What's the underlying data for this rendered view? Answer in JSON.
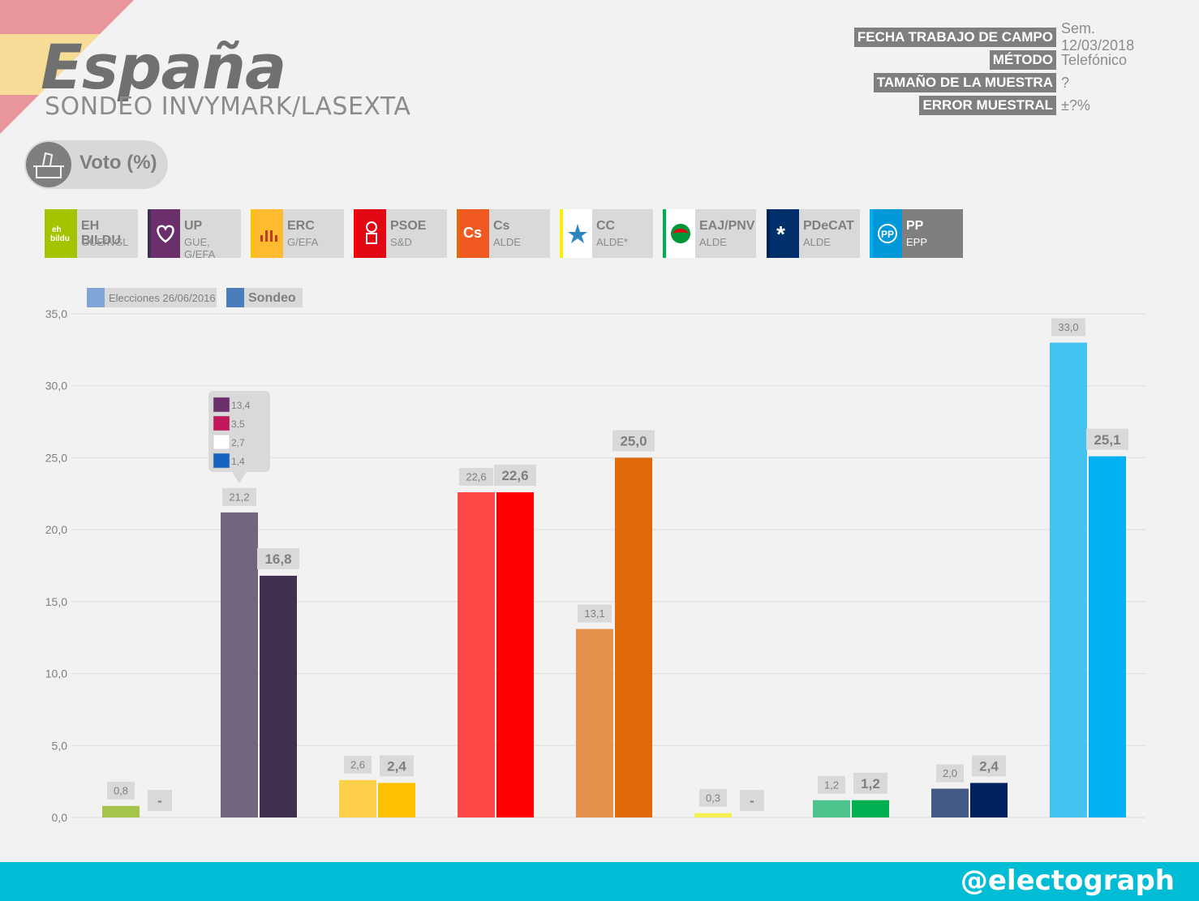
{
  "header": {
    "title": "España",
    "subtitle": "SONDEO INVYMARK/LASEXTA",
    "meta": [
      {
        "key": "FECHA TRABAJO DE CAMPO",
        "value": "Sem. 12/03/2018"
      },
      {
        "key": "MÉTODO",
        "value": "Telefónico"
      },
      {
        "key": "TAMAÑO DE LA MUESTRA",
        "value": "?"
      },
      {
        "key": "ERROR MUESTRAL",
        "value": "±?%"
      }
    ]
  },
  "metric": {
    "label": "Voto (%)",
    "icon": "ballot-box-icon"
  },
  "parties": [
    {
      "name": "EH BILDU",
      "group": "GUE/NGL",
      "color": "#a5c400",
      "logo_text": "eh bildu"
    },
    {
      "name": "UP",
      "group": "GUE, G/EFA",
      "color": "#6b2f6b",
      "logo_text": ""
    },
    {
      "name": "ERC",
      "group": "G/EFA",
      "color": "#ffbb2f",
      "logo_text": ""
    },
    {
      "name": "PSOE",
      "group": "S&D",
      "color": "#e30613",
      "logo_text": ""
    },
    {
      "name": "Cs",
      "group": "ALDE",
      "color": "#f05a22",
      "logo_text": "Cs"
    },
    {
      "name": "CC",
      "group": "ALDE*",
      "color": "#ffed00",
      "logo_text": ""
    },
    {
      "name": "EAJ/PNV",
      "group": "ALDE",
      "color": "#009639",
      "logo_text": ""
    },
    {
      "name": "PDeCAT",
      "group": "ALDE",
      "color": "#002f6c",
      "logo_text": ""
    },
    {
      "name": "PP",
      "group": "EPP",
      "color": "#0098d9",
      "logo_text": ""
    }
  ],
  "chart_data": {
    "type": "bar",
    "categories": [
      "EH BILDU",
      "UP",
      "ERC",
      "PSOE",
      "Cs",
      "CC",
      "EAJ/PNV",
      "PDeCAT",
      "PP"
    ],
    "series": [
      {
        "name": "Elecciones 26/06/2016",
        "values": [
          0.8,
          21.2,
          2.6,
          22.6,
          13.1,
          0.3,
          1.2,
          2.0,
          33.0
        ],
        "labels": [
          "0,8",
          "21,2",
          "2,6",
          "22,6",
          "13,1",
          "0,3",
          "1,2",
          "2,0",
          "33,0"
        ],
        "legend_color": "#7ea6d6",
        "colors": [
          "#a5c44a",
          "#72667f",
          "#fdd04a",
          "#ff4848",
          "#e3924b",
          "#f4f052",
          "#4cc38a",
          "#435a87",
          "#45c3f0"
        ]
      },
      {
        "name": "Sondeo",
        "values": [
          null,
          16.8,
          2.4,
          22.6,
          25.0,
          null,
          1.2,
          2.4,
          25.1
        ],
        "labels": [
          "-",
          "16,8",
          "2,4",
          "22,6",
          "25,0",
          "-",
          "1,2",
          "2,4",
          "25,1"
        ],
        "legend_color": "#4a7ebb",
        "colors": [
          "#a5c44a",
          "#41304f",
          "#ffc000",
          "#ff0000",
          "#e06909",
          "#f4f052",
          "#00b050",
          "#002060",
          "#00b0f0"
        ]
      }
    ],
    "ylim": [
      0,
      35
    ],
    "yticks": [
      "0,0",
      "5,0",
      "10,0",
      "15,0",
      "20,0",
      "25,0",
      "30,0",
      "35,0"
    ],
    "grid": true,
    "legend_position": "top-left",
    "annotation": {
      "category": "UP",
      "items": [
        {
          "label": "13,4",
          "logo": "podemos-logo-icon"
        },
        {
          "label": "3,5",
          "logo": "iu-logo-icon"
        },
        {
          "label": "2,7",
          "logo": "compromis-logo-icon"
        },
        {
          "label": "1,4",
          "logo": "en-marea-logo-icon"
        }
      ]
    }
  },
  "footer": {
    "handle": "@electograph"
  }
}
